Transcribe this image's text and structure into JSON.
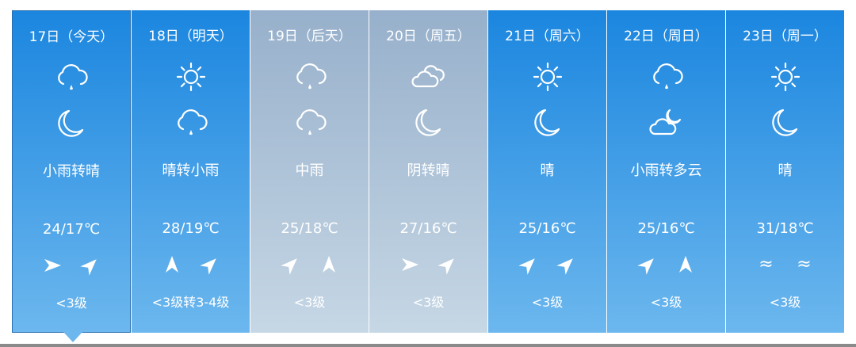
{
  "colors": {
    "blue_top": "#1b86df",
    "blue_bottom": "#6cb7ee",
    "gray_top": "#97b0cb",
    "gray_bottom": "#c6d7e5"
  },
  "days": [
    {
      "date": "17日（今天）",
      "day_icon": "cloud-rain-icon",
      "night_icon": "moon-icon",
      "desc": "小雨转晴",
      "temp": "24/17℃",
      "wind": [
        "east",
        "northeast"
      ],
      "level": "<3级",
      "selected": true,
      "style": "blue"
    },
    {
      "date": "18日（明天）",
      "day_icon": "sun-icon",
      "night_icon": "cloud-rain-icon",
      "desc": "晴转小雨",
      "temp": "28/19℃",
      "wind": [
        "north",
        "northeast"
      ],
      "level": "<3级转3-4级",
      "style": "blue"
    },
    {
      "date": "19日（后天）",
      "day_icon": "cloud-rain-icon",
      "night_icon": "cloud-rain-icon",
      "desc": "中雨",
      "temp": "25/18℃",
      "wind": [
        "northeast",
        "north"
      ],
      "level": "<3级",
      "style": "gray"
    },
    {
      "date": "20日（周五）",
      "day_icon": "overcast-icon",
      "night_icon": "moon-icon",
      "desc": "阴转晴",
      "temp": "27/16℃",
      "wind": [
        "east",
        "northeast"
      ],
      "level": "<3级",
      "style": "gray"
    },
    {
      "date": "21日（周六）",
      "day_icon": "sun-icon",
      "night_icon": "moon-icon",
      "desc": "晴",
      "temp": "25/16℃",
      "wind": [
        "northeast",
        "northeast"
      ],
      "level": "<3级",
      "style": "blue"
    },
    {
      "date": "22日（周日）",
      "day_icon": "cloud-rain-icon",
      "night_icon": "cloud-moon-icon",
      "desc": "小雨转多云",
      "temp": "25/16℃",
      "wind": [
        "northeast",
        "north"
      ],
      "level": "<3级",
      "style": "blue"
    },
    {
      "date": "23日（周一）",
      "day_icon": "sun-icon",
      "night_icon": "moon-icon",
      "desc": "晴",
      "temp": "31/18℃",
      "wind": [
        "variable",
        "variable"
      ],
      "level": "<3级",
      "style": "blue"
    }
  ]
}
